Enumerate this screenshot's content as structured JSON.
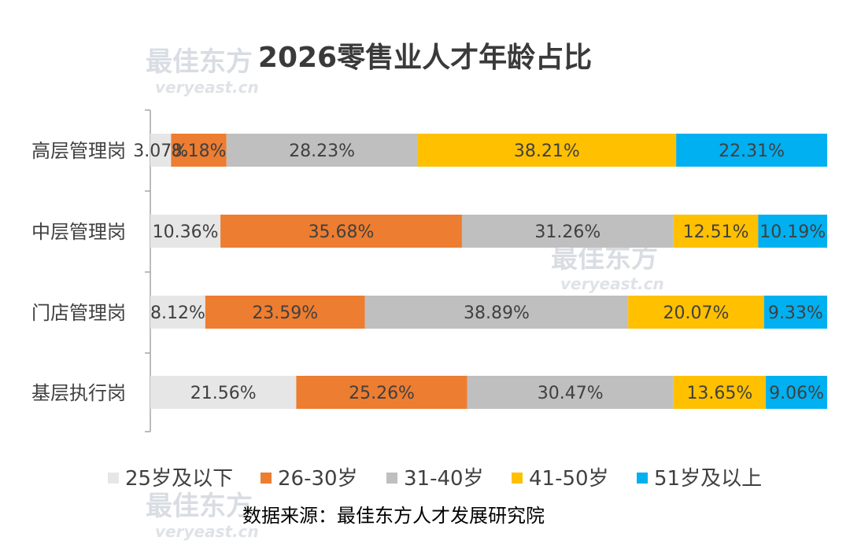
{
  "watermark": {
    "cn": "最佳东方",
    "en": "veryeast.cn"
  },
  "chart_data": {
    "type": "bar",
    "orientation": "horizontal",
    "stacked": "100%",
    "title": "2026零售业人才年龄占比",
    "categories": [
      "高层管理岗",
      "中层管理岗",
      "门店管理岗",
      "基层执行岗"
    ],
    "series": [
      {
        "name": "25岁及以下",
        "color": "#e7e6e6",
        "values": [
          3.07,
          10.36,
          8.12,
          21.56
        ],
        "labels": [
          "3.07%",
          "10.36%",
          "8.12%",
          "21.56%"
        ]
      },
      {
        "name": "26-30岁",
        "color": "#ed7d31",
        "values": [
          8.18,
          35.68,
          23.59,
          25.26
        ],
        "labels": [
          "8.18%",
          "35.68%",
          "23.59%",
          "25.26%"
        ]
      },
      {
        "name": "31-40岁",
        "color": "#bfbfbf",
        "values": [
          28.23,
          31.26,
          38.89,
          30.47
        ],
        "labels": [
          "28.23%",
          "31.26%",
          "38.89%",
          "30.47%"
        ]
      },
      {
        "name": "41-50岁",
        "color": "#ffc000",
        "values": [
          38.21,
          12.51,
          20.07,
          13.65
        ],
        "labels": [
          "38.21%",
          "12.51%",
          "20.07%",
          "13.65%"
        ]
      },
      {
        "name": "51岁及以上",
        "color": "#00b0f0",
        "values": [
          22.31,
          10.19,
          9.33,
          9.06
        ],
        "labels": [
          "22.31%",
          "10.19%",
          "9.33%",
          "9.06%"
        ]
      }
    ],
    "legend_position": "bottom",
    "grid": false,
    "source": "数据来源：最佳东方人才发展研究院"
  }
}
